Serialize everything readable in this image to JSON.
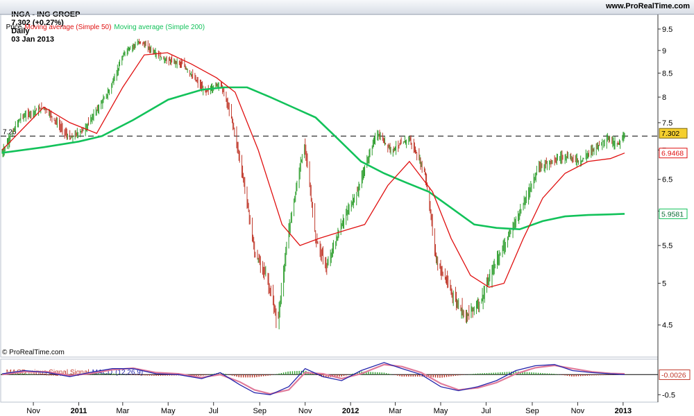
{
  "header": {
    "symbol": "INGA - ING GROEP",
    "quote": "7.302 (+0.27%)",
    "period": "Daily",
    "date": "03 Jan 2013",
    "site": "www.ProRealTime.com"
  },
  "price_legend": {
    "price": "Price",
    "ma50": "Moving average (Simple 50)",
    "ma200": "Moving average (Simple 200)"
  },
  "macd_legend": {
    "hist": "MACD minus Signal Signal",
    "macd": "MACD",
    "params": "(12,26,9)"
  },
  "copyright": "© ProRealTime.com",
  "colors": {
    "bar_up": "#2e9e2e",
    "bar_down": "#c0392b",
    "ma50": "#e01010",
    "ma200": "#12c25a",
    "macd": "#2222aa",
    "signal": "#e07a9a",
    "last_price_box": "#f5cf2e"
  },
  "chart_data": [
    {
      "type": "line",
      "title": "INGA - ING GROEP",
      "ylim": [
        4.15,
        9.7
      ],
      "yticks": [
        4.5,
        5,
        5.5,
        6,
        6.5,
        7,
        7.5,
        8,
        8.5,
        9,
        9.5
      ],
      "ytick_labels": [
        "4.5",
        "5",
        "5.5",
        "6",
        "6.5",
        "7",
        "7.5",
        "8",
        "8.5",
        "9",
        "9.5"
      ],
      "x_labels": [
        {
          "date": "2010-11-01",
          "label": "Nov"
        },
        {
          "date": "2011-01-01",
          "label": "2011"
        },
        {
          "date": "2011-03-01",
          "label": "Mar"
        },
        {
          "date": "2011-05-01",
          "label": "May"
        },
        {
          "date": "2011-07-01",
          "label": "Jul"
        },
        {
          "date": "2011-09-01",
          "label": "Sep"
        },
        {
          "date": "2011-11-01",
          "label": "Nov"
        },
        {
          "date": "2012-01-01",
          "label": "2012"
        },
        {
          "date": "2012-03-01",
          "label": "Mar"
        },
        {
          "date": "2012-05-01",
          "label": "May"
        },
        {
          "date": "2012-07-01",
          "label": "Jul"
        },
        {
          "date": "2012-09-01",
          "label": "Sep"
        },
        {
          "date": "2012-11-01",
          "label": "Nov"
        },
        {
          "date": "2013-01-01",
          "label": "2013"
        }
      ],
      "x_start": "2010-09-20",
      "x_end": "2013-01-03",
      "reference_line": {
        "value": 7.25,
        "label": "7.25",
        "style": "dashed"
      },
      "series": [
        {
          "name": "Price",
          "render": "ohlc-bars",
          "x": [
            "2010-09-20",
            "2010-10-15",
            "2010-11-15",
            "2010-12-20",
            "2011-01-10",
            "2011-02-10",
            "2011-03-05",
            "2011-03-25",
            "2011-04-25",
            "2011-05-20",
            "2011-06-20",
            "2011-07-10",
            "2011-07-25",
            "2011-08-10",
            "2011-08-25",
            "2011-09-10",
            "2011-09-25",
            "2011-10-10",
            "2011-10-31",
            "2011-11-15",
            "2011-11-30",
            "2011-12-20",
            "2012-01-10",
            "2012-02-05",
            "2012-02-25",
            "2012-03-20",
            "2012-04-10",
            "2012-04-25",
            "2012-05-20",
            "2012-06-05",
            "2012-06-25",
            "2012-07-15",
            "2012-07-30",
            "2012-08-20",
            "2012-09-10",
            "2012-09-25",
            "2012-10-15",
            "2012-11-05",
            "2012-11-20",
            "2012-12-10",
            "2012-12-25",
            "2013-01-03"
          ],
          "y": [
            6.95,
            7.6,
            7.8,
            7.2,
            7.4,
            8.1,
            9.0,
            9.2,
            8.8,
            8.7,
            8.1,
            8.3,
            7.6,
            6.5,
            5.4,
            5.1,
            4.5,
            5.7,
            7.1,
            5.6,
            5.2,
            5.8,
            6.3,
            7.3,
            7.0,
            7.2,
            6.6,
            5.3,
            4.8,
            4.6,
            4.8,
            5.3,
            5.6,
            6.1,
            6.7,
            6.8,
            6.9,
            6.8,
            7.0,
            7.2,
            7.1,
            7.302
          ]
        },
        {
          "name": "Moving average (Simple 50)",
          "x": [
            "2010-09-20",
            "2010-11-15",
            "2010-12-20",
            "2011-01-25",
            "2011-03-01",
            "2011-03-30",
            "2011-04-30",
            "2011-06-01",
            "2011-07-05",
            "2011-07-30",
            "2011-08-30",
            "2011-10-01",
            "2011-10-25",
            "2011-11-20",
            "2011-12-20",
            "2012-01-20",
            "2012-02-20",
            "2012-03-20",
            "2012-04-20",
            "2012-05-15",
            "2012-06-10",
            "2012-07-05",
            "2012-07-25",
            "2012-08-20",
            "2012-09-15",
            "2012-10-15",
            "2012-11-15",
            "2012-12-15",
            "2013-01-03"
          ],
          "y": [
            7.0,
            7.8,
            7.5,
            7.3,
            8.2,
            8.9,
            8.95,
            8.7,
            8.4,
            8.1,
            7.0,
            5.8,
            5.5,
            5.6,
            5.7,
            5.8,
            6.4,
            6.8,
            6.3,
            5.6,
            5.1,
            4.95,
            5.0,
            5.6,
            6.2,
            6.6,
            6.8,
            6.85,
            6.9468
          ]
        },
        {
          "name": "Moving average (Simple 200)",
          "x": [
            "2010-09-20",
            "2010-11-15",
            "2011-01-01",
            "2011-02-01",
            "2011-03-15",
            "2011-05-01",
            "2011-06-15",
            "2011-07-15",
            "2011-08-15",
            "2011-09-15",
            "2011-10-15",
            "2011-11-15",
            "2011-12-15",
            "2012-01-15",
            "2012-02-15",
            "2012-03-15",
            "2012-04-15",
            "2012-05-15",
            "2012-06-15",
            "2012-07-15",
            "2012-08-15",
            "2012-09-15",
            "2012-10-15",
            "2012-11-15",
            "2012-12-15",
            "2013-01-03"
          ],
          "y": [
            6.95,
            7.05,
            7.15,
            7.25,
            7.55,
            7.95,
            8.15,
            8.2,
            8.2,
            8.0,
            7.8,
            7.6,
            7.2,
            6.8,
            6.6,
            6.45,
            6.3,
            6.05,
            5.8,
            5.75,
            5.73,
            5.85,
            5.92,
            5.94,
            5.95,
            5.9581
          ]
        }
      ],
      "last_labels": [
        {
          "series": "Price",
          "value": 7.302,
          "label": "7.302"
        },
        {
          "series": "Moving average (Simple 50)",
          "value": 6.9468,
          "label": "6.9468"
        },
        {
          "series": "Moving average (Simple 200)",
          "value": 5.9581,
          "label": "5.9581"
        }
      ],
      "grid": false
    },
    {
      "type": "line",
      "title": "MACD (12,26,9)",
      "ylim": [
        -0.65,
        0.35
      ],
      "yticks": [
        -0.5
      ],
      "ytick_labels": [
        "-0.5"
      ],
      "zero_line": true,
      "series": [
        {
          "name": "MACD",
          "x": [
            "2010-09-20",
            "2010-10-20",
            "2010-11-20",
            "2010-12-20",
            "2011-01-15",
            "2011-02-15",
            "2011-03-15",
            "2011-04-15",
            "2011-05-15",
            "2011-06-15",
            "2011-07-10",
            "2011-08-05",
            "2011-08-25",
            "2011-09-15",
            "2011-10-10",
            "2011-11-01",
            "2011-11-25",
            "2011-12-20",
            "2012-01-15",
            "2012-02-15",
            "2012-03-10",
            "2012-04-05",
            "2012-05-01",
            "2012-05-25",
            "2012-06-20",
            "2012-07-15",
            "2012-08-10",
            "2012-09-05",
            "2012-10-01",
            "2012-10-25",
            "2012-11-20",
            "2012-12-15",
            "2013-01-03"
          ],
          "y": [
            0.02,
            0.1,
            0.05,
            -0.05,
            0.05,
            0.15,
            0.15,
            0.02,
            0.0,
            -0.1,
            0.05,
            -0.25,
            -0.45,
            -0.5,
            -0.3,
            0.15,
            -0.05,
            -0.15,
            0.1,
            0.3,
            0.15,
            0.0,
            -0.3,
            -0.4,
            -0.3,
            -0.15,
            0.1,
            0.22,
            0.25,
            0.1,
            0.05,
            0.02,
            0.0
          ]
        },
        {
          "name": "Signal",
          "x": [
            "2010-09-20",
            "2010-10-20",
            "2010-11-20",
            "2010-12-20",
            "2011-01-15",
            "2011-02-15",
            "2011-03-15",
            "2011-04-15",
            "2011-05-15",
            "2011-06-15",
            "2011-07-10",
            "2011-08-05",
            "2011-08-25",
            "2011-09-15",
            "2011-10-10",
            "2011-11-01",
            "2011-11-25",
            "2011-12-20",
            "2012-01-15",
            "2012-02-15",
            "2012-03-10",
            "2012-04-05",
            "2012-05-01",
            "2012-05-25",
            "2012-06-20",
            "2012-07-15",
            "2012-08-10",
            "2012-09-05",
            "2012-10-01",
            "2012-10-25",
            "2012-11-20",
            "2012-12-15",
            "2013-01-03"
          ],
          "y": [
            0.0,
            0.07,
            0.07,
            -0.02,
            0.02,
            0.12,
            0.16,
            0.05,
            0.02,
            -0.07,
            0.0,
            -0.18,
            -0.38,
            -0.48,
            -0.38,
            0.05,
            0.02,
            -0.1,
            0.02,
            0.25,
            0.2,
            0.05,
            -0.22,
            -0.38,
            -0.33,
            -0.2,
            0.02,
            0.17,
            0.23,
            0.15,
            0.07,
            0.03,
            0.02
          ]
        },
        {
          "name": "MACD minus Signal",
          "render": "histogram",
          "x": [
            "2010-09-20",
            "2010-10-20",
            "2010-11-20",
            "2010-12-20",
            "2011-01-15",
            "2011-02-15",
            "2011-03-15",
            "2011-04-15",
            "2011-05-15",
            "2011-06-15",
            "2011-07-10",
            "2011-08-05",
            "2011-08-25",
            "2011-09-15",
            "2011-10-10",
            "2011-11-01",
            "2011-11-25",
            "2011-12-20",
            "2012-01-15",
            "2012-02-15",
            "2012-03-10",
            "2012-04-05",
            "2012-05-01",
            "2012-05-25",
            "2012-06-20",
            "2012-07-15",
            "2012-08-10",
            "2012-09-05",
            "2012-10-01",
            "2012-10-25",
            "2012-11-20",
            "2012-12-15",
            "2013-01-03"
          ],
          "y": [
            0.02,
            0.03,
            -0.02,
            -0.03,
            0.03,
            0.03,
            -0.01,
            -0.03,
            -0.02,
            -0.03,
            0.05,
            -0.07,
            -0.07,
            -0.02,
            0.08,
            0.1,
            -0.07,
            -0.05,
            0.08,
            0.05,
            -0.05,
            -0.05,
            -0.08,
            -0.02,
            0.03,
            0.05,
            0.08,
            0.05,
            0.02,
            -0.05,
            -0.02,
            -0.01,
            -0.0026
          ]
        }
      ],
      "last_labels": [
        {
          "series": "MACD minus Signal",
          "value": -0.0026,
          "label": "-0.0026"
        }
      ]
    }
  ]
}
